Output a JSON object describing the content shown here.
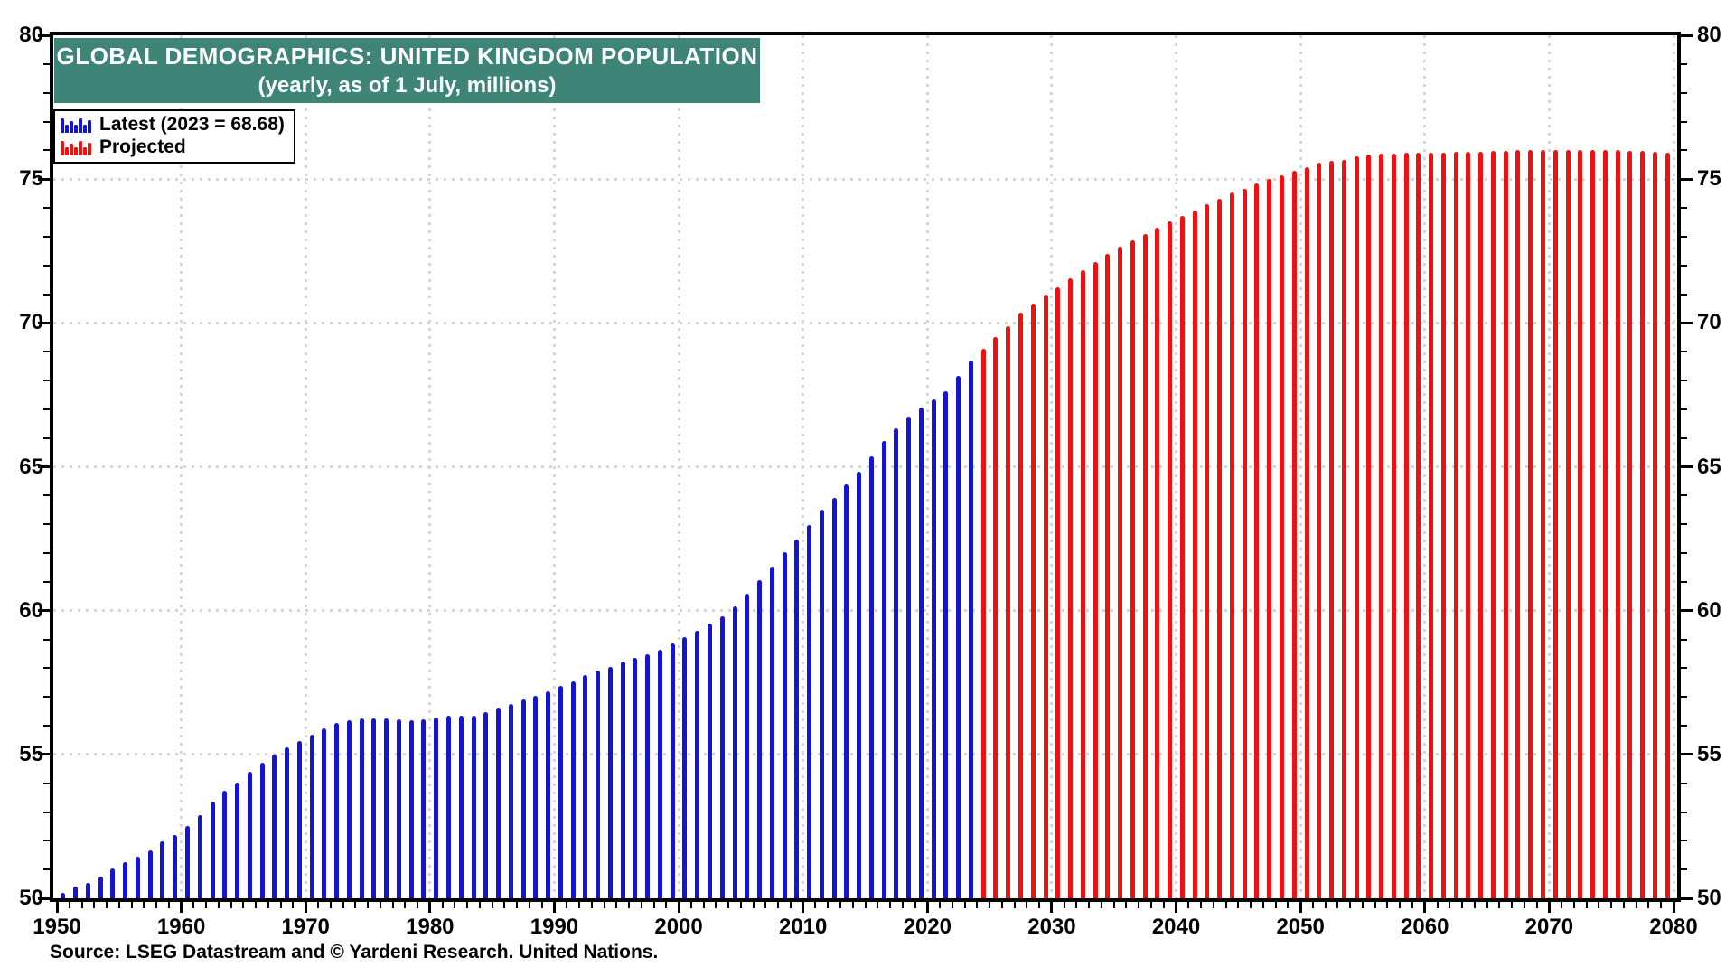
{
  "title": {
    "line1": "GLOBAL DEMOGRAPHICS: UNITED KINGDOM POPULATION",
    "line2": "(yearly, as of 1 July, millions)",
    "banner_color": "#3E8577"
  },
  "legend": {
    "items": [
      {
        "label": "Latest (2023 = 68.68)",
        "color": "#1515D0",
        "series": "latest"
      },
      {
        "label": "Projected",
        "color": "#EE1111",
        "series": "projected"
      }
    ]
  },
  "source": "Source: LSEG Datastream and © Yardeni Research. United Nations.",
  "colors": {
    "latest_bar": "#1515D0",
    "projected_bar": "#EE1111",
    "grid": "#d6d6d6",
    "frame": "#000000",
    "banner": "#3E8577"
  },
  "chart_data": {
    "type": "bar",
    "title": "GLOBAL DEMOGRAPHICS: UNITED KINGDOM POPULATION",
    "subtitle": "(yearly, as of 1 July, millions)",
    "xlabel": "",
    "ylabel": "",
    "ylim": [
      50,
      80
    ],
    "xlim": [
      1950,
      2080
    ],
    "grid": "dotted",
    "legend_position": "top-left",
    "y_ticks": [
      50,
      55,
      60,
      65,
      70,
      75,
      80
    ],
    "y_minor_tick_step": 1,
    "x_ticks": [
      1950,
      1960,
      1970,
      1980,
      1990,
      2000,
      2010,
      2020,
      2030,
      2040,
      2050,
      2060,
      2070,
      2080
    ],
    "x_minor_tick_step": 1,
    "y_gridlines": [
      55,
      60,
      65,
      70,
      75
    ],
    "x_gridlines": [
      1960,
      1970,
      1980,
      1990,
      2000,
      2010,
      2020,
      2030,
      2040,
      2050,
      2060,
      2070,
      2080
    ],
    "series": [
      {
        "name": "Latest (2023 = 68.68)",
        "color": "#1515D0",
        "start_year": 1950,
        "values": [
          50.2,
          50.4,
          50.52,
          50.76,
          51.03,
          51.26,
          51.45,
          51.68,
          51.98,
          52.2,
          52.5,
          52.9,
          53.35,
          53.73,
          54.02,
          54.4,
          54.72,
          55.01,
          55.25,
          55.48,
          55.69,
          55.9,
          56.08,
          56.18,
          56.24,
          56.25,
          56.25,
          56.22,
          56.18,
          56.22,
          56.29,
          56.35,
          56.34,
          56.36,
          56.46,
          56.63,
          56.76,
          56.92,
          57.04,
          57.18,
          57.39,
          57.55,
          57.76,
          57.91,
          58.05,
          58.23,
          58.36,
          58.47,
          58.63,
          58.87,
          59.08,
          59.31,
          59.54,
          59.81,
          60.15,
          60.59,
          61.06,
          61.53,
          62.02,
          62.48,
          62.98,
          63.51,
          63.93,
          64.39,
          64.84,
          65.35,
          65.88,
          66.35,
          66.73,
          67.06,
          67.33,
          67.61,
          68.16,
          68.68
        ]
      },
      {
        "name": "Projected",
        "color": "#EE1111",
        "start_year": 2024,
        "values": [
          69.1,
          69.5,
          69.9,
          70.35,
          70.67,
          70.98,
          71.24,
          71.56,
          71.82,
          72.13,
          72.4,
          72.66,
          72.87,
          73.08,
          73.31,
          73.52,
          73.71,
          73.92,
          74.13,
          74.32,
          74.53,
          74.67,
          74.86,
          74.99,
          75.12,
          75.29,
          75.4,
          75.58,
          75.64,
          75.68,
          75.79,
          75.85,
          75.87,
          75.87,
          75.92,
          75.92,
          75.92,
          75.92,
          75.94,
          75.94,
          75.95,
          75.97,
          75.98,
          76.0,
          76.0,
          76.0,
          76.0,
          76.0,
          76.0,
          76.0,
          76.0,
          76.0,
          75.98,
          75.97,
          75.95,
          75.93,
          75.9
        ]
      }
    ]
  }
}
